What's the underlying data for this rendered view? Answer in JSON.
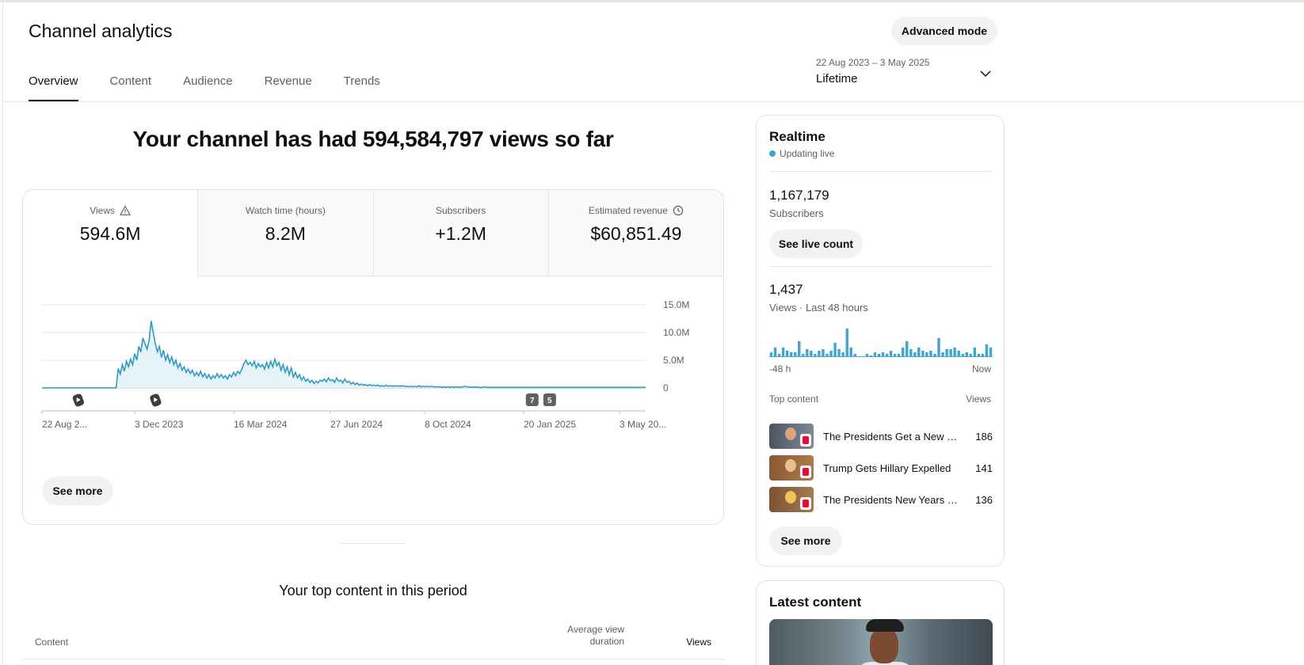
{
  "header": {
    "title": "Channel analytics",
    "advanced_mode_label": "Advanced mode",
    "tabs": [
      {
        "label": "Overview",
        "active": true
      },
      {
        "label": "Content",
        "active": false
      },
      {
        "label": "Audience",
        "active": false
      },
      {
        "label": "Revenue",
        "active": false
      },
      {
        "label": "Trends",
        "active": false
      }
    ],
    "date_range": "22 Aug 2023 – 3 May 2025",
    "date_label": "Lifetime"
  },
  "overview": {
    "headline": "Your channel has had 594,584,797 views so far",
    "metrics": [
      {
        "label": "Views",
        "value": "594.6M",
        "icon": "warning-icon"
      },
      {
        "label": "Watch time (hours)",
        "value": "8.2M"
      },
      {
        "label": "Subscribers",
        "value": "+1.2M"
      },
      {
        "label": "Estimated revenue",
        "value": "$60,851.49",
        "icon": "clock-icon"
      }
    ],
    "see_more_label": "See more"
  },
  "chart_data": {
    "type": "area",
    "series": [
      {
        "values": [
          0,
          0,
          0,
          0,
          0,
          0,
          0,
          0,
          0,
          0,
          0,
          0,
          0,
          0,
          0,
          0,
          0,
          0,
          0,
          0,
          0,
          0,
          0,
          0,
          0,
          0,
          0,
          0,
          0,
          0,
          0,
          0,
          0,
          0,
          0,
          0,
          0,
          3.5,
          2.5,
          4.2,
          3.0,
          4.8,
          3.8,
          5.2,
          4.2,
          6.2,
          5.0,
          7.5,
          6.5,
          9.0,
          8.0,
          7.0,
          8.5,
          12.1,
          10.0,
          8.0,
          6.5,
          7.5,
          5.5,
          6.8,
          5.0,
          6.0,
          4.6,
          5.6,
          4.2,
          5.0,
          3.6,
          4.4,
          3.2,
          3.8,
          2.8,
          3.4,
          2.6,
          3.2,
          2.2,
          2.8,
          2.2,
          3.0,
          2.0,
          2.6,
          1.8,
          2.4,
          1.6,
          2.2,
          1.8,
          2.6,
          1.9,
          2.4,
          1.8,
          2.2,
          1.6,
          2.4,
          2.0,
          2.8,
          2.2,
          3.0,
          2.6,
          3.4,
          4.4,
          5.0,
          4.2,
          4.6,
          4.0,
          4.8,
          3.6,
          4.4,
          3.8,
          4.2,
          3.4,
          4.6,
          3.6,
          4.8,
          3.8,
          5.2,
          4.0,
          4.6,
          3.2,
          4.2,
          2.8,
          3.8,
          2.4,
          3.6,
          2.0,
          2.8,
          1.8,
          2.4,
          1.4,
          2.0,
          1.2,
          1.6,
          1.0,
          1.4,
          0.8,
          1.2,
          0.9,
          1.4,
          1.2,
          1.6,
          1.1,
          1.8,
          1.3,
          1.5,
          1.0,
          1.8,
          1.2,
          1.4,
          0.9,
          1.6,
          1.0,
          1.2,
          0.7,
          1.0,
          0.6,
          0.9,
          0.5,
          0.7,
          0.5,
          0.6,
          0.4,
          0.6,
          0.4,
          0.5,
          0.4,
          0.5,
          0.3,
          0.4,
          0.3,
          0.5,
          0.3,
          0.4,
          0.3,
          0.4,
          0.3,
          0.4,
          0.3,
          0.4,
          0.3,
          0.3,
          0.2,
          0.3,
          0.2,
          0.3,
          0.2,
          0.4,
          0.2,
          0.3,
          0.2,
          0.3,
          0.2,
          0.3,
          0.2,
          0.2,
          0.2,
          0.2,
          0.1,
          0.2,
          0.1,
          0.2,
          0.1,
          0.2,
          0.1,
          0.2,
          0.1,
          0.2,
          0.1,
          0.3,
          0.2,
          0.2,
          0.1,
          0.2,
          0.1,
          0.2,
          0.1,
          0.1,
          0.1,
          0.2,
          0.1,
          0.1,
          0.1,
          0.1,
          0.1,
          0.1,
          0.1,
          0.1,
          0.1,
          0.1,
          0.1,
          0.1,
          0.1,
          0.1,
          0.1,
          0.1,
          0.1,
          0.1,
          0.1,
          0.1,
          0.1,
          0.1,
          0.1,
          0.1,
          0.1,
          0.1,
          0.1,
          0.1,
          0.1,
          0.1,
          0.1,
          0.1,
          0.1,
          0.1,
          0.1,
          0.1,
          0.1,
          0.1,
          0.1,
          0.1,
          0.1,
          0.1,
          0.1,
          0.1,
          0.1,
          0.1,
          0.1,
          0.1,
          0.1,
          0.1,
          0.1,
          0.1,
          0.1,
          0.1,
          0.1,
          0.1,
          0.1,
          0.1,
          0.1,
          0.1,
          0.1,
          0.1,
          0.1,
          0.1,
          0.1,
          0.1,
          0.1,
          0.1,
          0.1,
          0.1,
          0.1,
          0.1,
          0.1,
          0.1,
          0.1,
          0.1,
          0.1,
          0.1
        ]
      }
    ],
    "ylim": [
      0,
      15
    ],
    "yticks": [
      "15.0M",
      "10.0M",
      "5.0M",
      "0"
    ],
    "xticks": [
      "22 Aug 2...",
      "3 Dec 2023",
      "16 Mar 2024",
      "27 Jun 2024",
      "8 Oct 2024",
      "20 Jan 2025",
      "3 May 20..."
    ],
    "markers": [
      {
        "type": "shorts",
        "at": 0.06
      },
      {
        "type": "shorts",
        "at": 0.188
      },
      {
        "type": "count",
        "label": "7",
        "at": 0.812
      },
      {
        "type": "count",
        "label": "5",
        "at": 0.841
      }
    ],
    "grid": true,
    "color": "#2f9ac4"
  },
  "top_content": {
    "title": "Your top content in this period",
    "col_content": "Content",
    "col_avg_line1": "Average view",
    "col_avg_line2": "duration",
    "col_views": "Views"
  },
  "realtime": {
    "title": "Realtime",
    "status": "Updating live",
    "subscribers_value": "1,167,179",
    "subscribers_label": "Subscribers",
    "live_count_label": "See live count",
    "views_value": "1,437",
    "views_label": "Views · Last 48 hours",
    "bars": [
      3,
      6,
      2,
      6,
      4,
      3,
      3,
      10,
      2,
      5,
      4,
      2,
      4,
      5,
      2,
      4,
      9,
      5,
      3,
      18,
      6,
      2,
      0,
      0,
      2,
      1,
      3,
      2,
      3,
      2,
      4,
      2,
      2,
      6,
      10,
      5,
      3,
      6,
      4,
      3,
      4,
      2,
      12,
      3,
      5,
      5,
      6,
      4,
      2,
      3,
      2,
      6,
      2,
      2,
      8,
      6
    ],
    "axis_left": "-48 h",
    "axis_right": "Now",
    "top_content_label": "Top content",
    "top_content_views_label": "Views",
    "items": [
      {
        "title": "The Presidents Get a New Home",
        "views": "186"
      },
      {
        "title": "Trump Gets Hillary Expelled",
        "views": "141"
      },
      {
        "title": "The Presidents New Years Party",
        "views": "136"
      }
    ],
    "see_more_label": "See more"
  },
  "latest": {
    "title": "Latest content"
  }
}
